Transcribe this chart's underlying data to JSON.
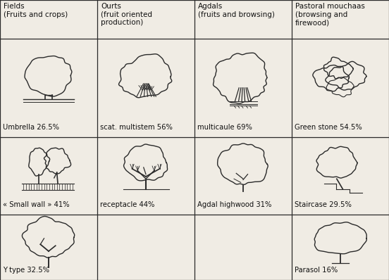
{
  "headers": [
    "Fields\n(Fruits and crops)",
    "Ourts\n(fruit oriented\nproduction)",
    "Agdals\n(fruits and browsing)",
    "Pastoral mouchaas\n(browsing and\nfirewood)"
  ],
  "rows": [
    [
      {
        "label": "Umbrella 26.5%",
        "tree": "umbrella"
      },
      {
        "label": "scat. multistem 56%",
        "tree": "multistem"
      },
      {
        "label": "multicaule 69%",
        "tree": "multicaule"
      },
      {
        "label": "Green stone 54.5%",
        "tree": "greenstone"
      }
    ],
    [
      {
        "label": "« Small wall » 41%",
        "tree": "smallwall"
      },
      {
        "label": "receptacle 44%",
        "tree": "receptacle"
      },
      {
        "label": "Agdal highwood 31%",
        "tree": "highwood"
      },
      {
        "label": "Staircase 29.5%",
        "tree": "staircase"
      }
    ],
    [
      {
        "label": "Y type 32.5%",
        "tree": "ytype"
      },
      {
        "label": "",
        "tree": ""
      },
      {
        "label": "",
        "tree": ""
      },
      {
        "label": "Parasol 16%",
        "tree": "parasol"
      }
    ]
  ],
  "background_color": "#f0ece4",
  "line_color": "#2a2a2a",
  "text_color": "#111111",
  "header_fontsize": 7.5,
  "label_fontsize": 7.2,
  "fig_width": 5.52,
  "fig_height": 3.98
}
